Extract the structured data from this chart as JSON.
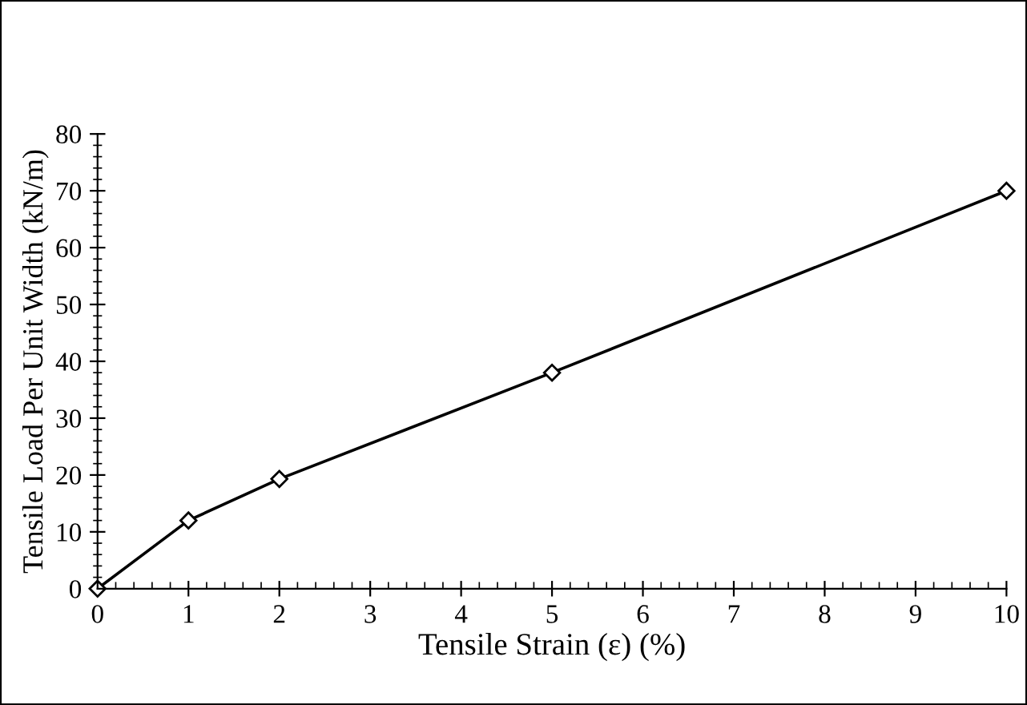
{
  "chart_data": {
    "type": "line",
    "xlabel": "Tensile Strain (ε) (%)",
    "ylabel": "Tensile Load Per Unit Width (kN/m)",
    "x": [
      0,
      1,
      2,
      5,
      10
    ],
    "series": [
      {
        "color": "#000000",
        "values": [
          0,
          12,
          19.3,
          38,
          70
        ]
      }
    ],
    "marker": "diamond",
    "line_style": "solid",
    "xlim": [
      0,
      10
    ],
    "xticks": [
      0,
      1,
      2,
      3,
      4,
      5,
      6,
      7,
      8,
      9,
      10
    ],
    "ylim": [
      0,
      80
    ],
    "yticks": [
      0,
      10,
      20,
      30,
      40,
      50,
      60,
      70,
      80
    ]
  }
}
